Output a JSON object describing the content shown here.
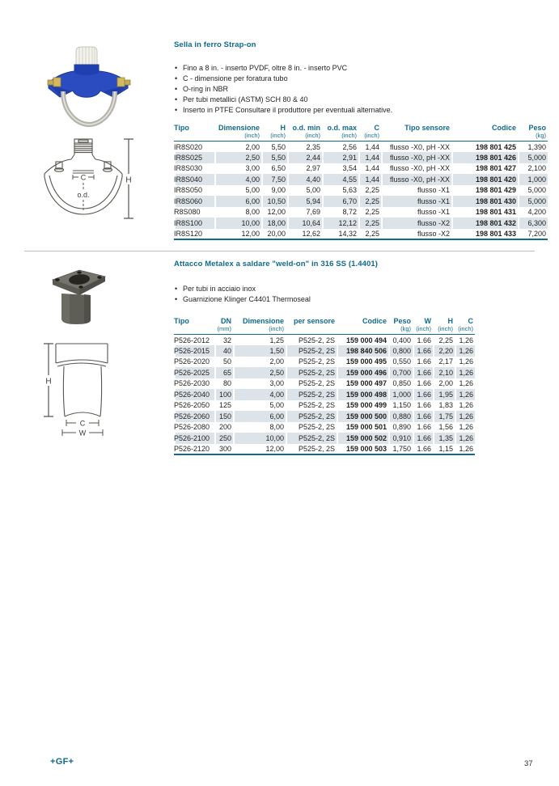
{
  "brand": {
    "logo": "+GF+",
    "page_number": "37",
    "accent_color": "#0f6a8e",
    "row_shading_color": "#dce4ea"
  },
  "section1": {
    "title": "Sella in ferro Strap-on",
    "bullets": [
      "Fino a 8 in. - inserto PVDF, oltre 8 in. - inserto PVC",
      "C - dimensione per foratura tubo",
      "O-ring in NBR",
      "Per tubi metallici (ASTM) SCH 80 & 40",
      "Inserto in PTFE Consultare il produttore per eventuali alternative."
    ],
    "diagram_labels": {
      "c": "C",
      "od": "o.d.",
      "h": "H"
    },
    "table": {
      "columns": [
        {
          "label": "Tipo",
          "unit": "",
          "align": "left"
        },
        {
          "label": "Dimensione",
          "unit": "(inch)",
          "align": "right"
        },
        {
          "label": "H",
          "unit": "(inch)",
          "align": "right"
        },
        {
          "label": "o.d. min",
          "unit": "(inch)",
          "align": "right"
        },
        {
          "label": "o.d. max",
          "unit": "(inch)",
          "align": "right"
        },
        {
          "label": "C",
          "unit": "(inch)",
          "align": "right"
        },
        {
          "label": "Tipo sensore",
          "unit": "",
          "align": "right"
        },
        {
          "label": "Codice",
          "unit": "",
          "align": "right",
          "strong": true
        },
        {
          "label": "Peso",
          "unit": "(kg)",
          "align": "right"
        }
      ],
      "rows": [
        [
          "IR8S020",
          "2,00",
          "5,50",
          "2,35",
          "2,56",
          "1,44",
          "flusso -X0, pH -XX",
          "198 801 425",
          "1,390"
        ],
        [
          "IR8S025",
          "2,50",
          "5,50",
          "2,44",
          "2,91",
          "1,44",
          "flusso -X0, pH -XX",
          "198 801 426",
          "5,000"
        ],
        [
          "IR8S030",
          "3,00",
          "6,50",
          "2,97",
          "3,54",
          "1,44",
          "flusso -X0, pH -XX",
          "198 801 427",
          "2,100"
        ],
        [
          "IR8S040",
          "4,00",
          "7,50",
          "4,40",
          "4,55",
          "1,44",
          "flusso -X0, pH -XX",
          "198 801 420",
          "1,000"
        ],
        [
          "IR8S050",
          "5,00",
          "9,00",
          "5,00",
          "5,63",
          "2,25",
          "flusso -X1",
          "198 801 429",
          "5,000"
        ],
        [
          "IR8S060",
          "6,00",
          "10,50",
          "5,94",
          "6,70",
          "2,25",
          "flusso -X1",
          "198 801 430",
          "5,000"
        ],
        [
          "R8S080",
          "8,00",
          "12,00",
          "7,69",
          "8,72",
          "2,25",
          "flusso -X1",
          "198 801 431",
          "4,200"
        ],
        [
          "IR8S100",
          "10,00",
          "18,00",
          "10,64",
          "12,12",
          "2,25",
          "flusso -X2",
          "198 801 432",
          "6,300"
        ],
        [
          "IR8S120",
          "12,00",
          "20,00",
          "12,62",
          "14,32",
          "2,25",
          "flusso -X2",
          "198 801 433",
          "7,200"
        ]
      ]
    }
  },
  "section2": {
    "title": "Attacco Metalex a saldare \"weld-on\" in 316 SS (1.4401)",
    "bullets": [
      "Per tubi in acciaio inox",
      "Guarnizione Klinger C4401 Thermoseal"
    ],
    "diagram_labels": {
      "h": "H",
      "c": "C",
      "w": "W"
    },
    "table": {
      "columns": [
        {
          "label": "Tipo",
          "unit": "",
          "align": "left"
        },
        {
          "label": "DN",
          "unit": "(mm)",
          "align": "right"
        },
        {
          "label": "Dimensione",
          "unit": "(inch)",
          "align": "right"
        },
        {
          "label": "per sensore",
          "unit": "",
          "align": "right"
        },
        {
          "label": "Codice",
          "unit": "",
          "align": "right",
          "strong": true
        },
        {
          "label": "Peso",
          "unit": "(kg)",
          "align": "right"
        },
        {
          "label": "W",
          "unit": "(inch)",
          "align": "right"
        },
        {
          "label": "H",
          "unit": "(inch)",
          "align": "right"
        },
        {
          "label": "C",
          "unit": "(inch)",
          "align": "right"
        }
      ],
      "rows": [
        [
          "P526-2012",
          "32",
          "1,25",
          "P525-2, 2S",
          "159 000 494",
          "0,400",
          "1.66",
          "2,25",
          "1,26"
        ],
        [
          "P526-2015",
          "40",
          "1,50",
          "P525-2, 2S",
          "198 840 506",
          "0,800",
          "1.66",
          "2,20",
          "1,26"
        ],
        [
          "P526-2020",
          "50",
          "2,00",
          "P525-2, 2S",
          "159 000 495",
          "0,550",
          "1.66",
          "2,17",
          "1,26"
        ],
        [
          "P526-2025",
          "65",
          "2,50",
          "P525-2, 2S",
          "159 000 496",
          "0,700",
          "1.66",
          "2,10",
          "1,26"
        ],
        [
          "P526-2030",
          "80",
          "3,00",
          "P525-2, 2S",
          "159 000 497",
          "0,850",
          "1.66",
          "2,00",
          "1,26"
        ],
        [
          "P526-2040",
          "100",
          "4,00",
          "P525-2, 2S",
          "159 000 498",
          "1,000",
          "1.66",
          "1,95",
          "1,26"
        ],
        [
          "P526-2050",
          "125",
          "5,00",
          "P525-2, 2S",
          "159 000 499",
          "1,150",
          "1.66",
          "1,83",
          "1,26"
        ],
        [
          "P526-2060",
          "150",
          "6,00",
          "P525-2, 2S",
          "159 000 500",
          "0,880",
          "1.66",
          "1,75",
          "1,26"
        ],
        [
          "P526-2080",
          "200",
          "8,00",
          "P525-2, 2S",
          "159 000 501",
          "0,890",
          "1.66",
          "1,56",
          "1,26"
        ],
        [
          "P526-2100",
          "250",
          "10,00",
          "P525-2, 2S",
          "159 000 502",
          "0,910",
          "1.66",
          "1,35",
          "1,26"
        ],
        [
          "P526-2120",
          "300",
          "12,00",
          "P525-2, 2S",
          "159 000 503",
          "1,750",
          "1.66",
          "1,15",
          "1,26"
        ]
      ]
    }
  }
}
